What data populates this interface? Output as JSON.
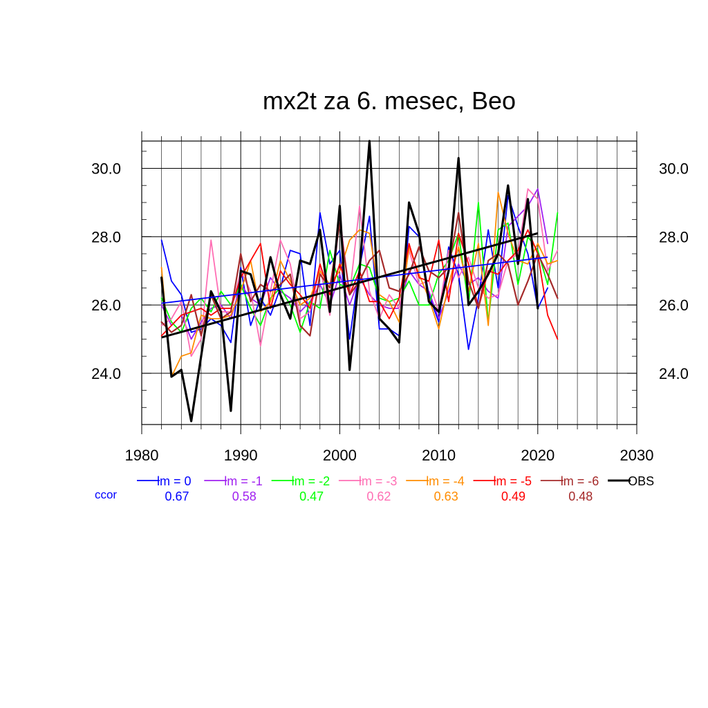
{
  "chart_data": {
    "type": "line",
    "title": "mx2t za 6. mesec, Beo",
    "xlim": [
      1980,
      2030
    ],
    "ylim": [
      22.5,
      30.8
    ],
    "x_ticks": [
      1980,
      1990,
      2000,
      2010,
      2020,
      2030
    ],
    "x_tick_labels": [
      "1980",
      "1990",
      "2000",
      "2010",
      "2020",
      "2030"
    ],
    "y_ticks": [
      24,
      26,
      28,
      30
    ],
    "y_tick_labels": [
      "24.0",
      "26.0",
      "28.0",
      "30.0"
    ],
    "grid": true,
    "ccor_label": "ccor",
    "series": [
      {
        "name": "lm = 0",
        "color": "#0000ff",
        "width": 1.8,
        "ccor": "0.67",
        "x": [
          1982,
          1983,
          1984,
          1985,
          1986,
          1987,
          1988,
          1989,
          1990,
          1991,
          1992,
          1993,
          1994,
          1995,
          1996,
          1997,
          1998,
          1999,
          2000,
          2001,
          2002,
          2003,
          2004,
          2005,
          2006,
          2007,
          2008,
          2009,
          2010,
          2011,
          2012,
          2013,
          2014,
          2015,
          2016,
          2017,
          2018,
          2019,
          2020,
          2021
        ],
        "y": [
          27.9,
          26.7,
          26.3,
          25.2,
          25.3,
          25.6,
          25.4,
          24.9,
          27.1,
          25.4,
          26.2,
          25.7,
          26.5,
          27.6,
          27.5,
          25.4,
          28.7,
          27.2,
          27.6,
          25.0,
          27.1,
          28.6,
          25.3,
          25.3,
          25.1,
          28.3,
          28.0,
          26.3,
          25.5,
          27.7,
          26.9,
          24.7,
          26.2,
          28.2,
          26.5,
          29.2,
          28.3,
          27.5,
          25.9,
          26.5
        ],
        "trend": [
          [
            1982,
            26.05
          ],
          [
            2021,
            27.4
          ]
        ]
      },
      {
        "name": "lm = -1",
        "color": "#a020f0",
        "width": 1.8,
        "ccor": "0.58",
        "x": [
          1982,
          1983,
          1984,
          1985,
          1986,
          1987,
          1988,
          1989,
          1990,
          1991,
          1992,
          1993,
          1994,
          1995,
          1996,
          1997,
          1998,
          1999,
          2000,
          2001,
          2002,
          2003,
          2004,
          2005,
          2006,
          2007,
          2008,
          2009,
          2010,
          2011,
          2012,
          2013,
          2014,
          2015,
          2016,
          2017,
          2018,
          2019,
          2020,
          2021
        ],
        "y": [
          26.0,
          25.4,
          25.7,
          25.0,
          25.5,
          25.9,
          26.0,
          25.6,
          26.6,
          26.2,
          26.0,
          26.8,
          26.4,
          26.2,
          25.8,
          26.1,
          26.6,
          26.0,
          26.9,
          26.0,
          26.8,
          26.3,
          26.0,
          25.9,
          25.9,
          27.0,
          26.6,
          26.4,
          25.6,
          26.4,
          27.2,
          26.6,
          26.8,
          26.4,
          26.2,
          28.3,
          28.6,
          28.9,
          29.4,
          27.8
        ]
      },
      {
        "name": "lm = -2",
        "color": "#00ff00",
        "width": 1.8,
        "ccor": "0.47",
        "x": [
          1982,
          1983,
          1984,
          1985,
          1986,
          1987,
          1988,
          1989,
          1990,
          1991,
          1992,
          1993,
          1994,
          1995,
          1996,
          1997,
          1998,
          1999,
          2000,
          2001,
          2002,
          2003,
          2004,
          2005,
          2006,
          2007,
          2008,
          2009,
          2010,
          2011,
          2012,
          2013,
          2014,
          2015,
          2016,
          2017,
          2018,
          2019,
          2020,
          2021,
          2022
        ],
        "y": [
          26.2,
          25.5,
          25.2,
          25.9,
          26.2,
          25.8,
          26.4,
          26.0,
          26.6,
          25.9,
          25.4,
          26.2,
          26.5,
          26.0,
          25.2,
          26.1,
          25.9,
          27.6,
          26.6,
          26.5,
          27.2,
          27.1,
          26.2,
          26.1,
          26.2,
          26.7,
          26.0,
          26.0,
          26.9,
          27.3,
          28.1,
          26.0,
          29.0,
          25.5,
          28.2,
          28.4,
          26.6,
          28.0,
          27.6,
          26.6,
          28.7
        ]
      },
      {
        "name": "lm = -3",
        "color": "#ff6eb4",
        "width": 1.8,
        "ccor": "0.62",
        "x": [
          1982,
          1983,
          1984,
          1985,
          1986,
          1987,
          1988,
          1989,
          1990,
          1991,
          1992,
          1993,
          1994,
          1995,
          1996,
          1997,
          1998,
          1999,
          2000,
          2001,
          2002,
          2003,
          2004,
          2005,
          2006,
          2007,
          2008,
          2009,
          2010,
          2011,
          2012,
          2013,
          2014,
          2015,
          2016,
          2017,
          2018,
          2019,
          2020,
          2021,
          2022
        ],
        "y": [
          25.4,
          25.6,
          26.1,
          24.5,
          25.0,
          27.9,
          25.8,
          25.8,
          27.0,
          26.4,
          24.8,
          26.4,
          27.9,
          27.2,
          25.6,
          25.8,
          27.1,
          25.7,
          28.6,
          26.3,
          28.9,
          26.4,
          25.6,
          26.3,
          25.9,
          27.6,
          26.6,
          26.7,
          25.8,
          27.6,
          26.8,
          27.4,
          26.5,
          26.2,
          26.3,
          27.3,
          27.5,
          29.4,
          29.1,
          27.0,
          27.6
        ]
      },
      {
        "name": "lm = -4",
        "color": "#ff8c00",
        "width": 1.8,
        "ccor": "0.63",
        "x": [
          1982,
          1983,
          1984,
          1985,
          1986,
          1987,
          1988,
          1989,
          1990,
          1991,
          1992,
          1993,
          1994,
          1995,
          1996,
          1997,
          1998,
          1999,
          2000,
          2001,
          2002,
          2003,
          2004,
          2005,
          2006,
          2007,
          2008,
          2009,
          2010,
          2011,
          2012,
          2013,
          2014,
          2015,
          2016,
          2017,
          2018,
          2019,
          2020,
          2021,
          2022
        ],
        "y": [
          27.1,
          23.9,
          24.5,
          24.6,
          25.7,
          25.6,
          25.6,
          25.7,
          26.4,
          27.3,
          25.8,
          26.1,
          27.3,
          26.7,
          26.0,
          26.2,
          27.0,
          26.6,
          27.0,
          27.9,
          28.2,
          28.1,
          26.3,
          26.1,
          25.5,
          27.7,
          26.9,
          26.2,
          25.3,
          26.6,
          27.7,
          26.4,
          27.8,
          25.4,
          29.3,
          28.1,
          27.3,
          27.2,
          27.8,
          27.2,
          27.3
        ]
      },
      {
        "name": "lm = -5",
        "color": "#ff0000",
        "width": 1.8,
        "ccor": "0.49",
        "x": [
          1982,
          1983,
          1984,
          1985,
          1986,
          1987,
          1988,
          1989,
          1990,
          1991,
          1992,
          1993,
          1994,
          1995,
          1996,
          1997,
          1998,
          1999,
          2000,
          2001,
          2002,
          2003,
          2004,
          2005,
          2006,
          2007,
          2008,
          2009,
          2010,
          2011,
          2012,
          2013,
          2014,
          2015,
          2016,
          2017,
          2018,
          2019,
          2020,
          2021,
          2022
        ],
        "y": [
          25.1,
          25.4,
          25.7,
          25.8,
          25.9,
          25.7,
          25.9,
          25.9,
          26.8,
          27.3,
          27.8,
          25.9,
          27.0,
          26.6,
          26.3,
          25.9,
          27.2,
          26.3,
          27.2,
          26.3,
          27.0,
          26.1,
          26.1,
          25.6,
          26.2,
          27.8,
          26.8,
          26.7,
          27.9,
          26.1,
          28.1,
          27.2,
          25.9,
          27.0,
          26.9,
          27.3,
          27.6,
          28.2,
          27.5,
          25.7,
          25.0
        ]
      },
      {
        "name": "lm = -6",
        "color": "#a52a2a",
        "width": 2.2,
        "ccor": "0.48",
        "x": [
          1982,
          1983,
          1984,
          1985,
          1986,
          1987,
          1988,
          1989,
          1990,
          1991,
          1992,
          1993,
          1994,
          1995,
          1996,
          1997,
          1998,
          1999,
          2000,
          2001,
          2002,
          2003,
          2004,
          2005,
          2006,
          2007,
          2008,
          2009,
          2010,
          2011,
          2012,
          2013,
          2014,
          2015,
          2016,
          2017,
          2018,
          2019,
          2020,
          2021,
          2022
        ],
        "y": [
          25.5,
          25.2,
          25.4,
          26.3,
          25.1,
          26.3,
          25.6,
          25.8,
          27.5,
          26.1,
          26.6,
          26.4,
          26.6,
          26.9,
          25.4,
          25.1,
          26.9,
          26.5,
          28.4,
          26.3,
          26.7,
          27.3,
          27.6,
          26.5,
          26.4,
          26.9,
          27.7,
          27.0,
          26.8,
          27.1,
          28.7,
          26.7,
          25.9,
          27.3,
          27.5,
          27.2,
          26.0,
          26.7,
          27.5,
          26.9,
          26.2
        ]
      },
      {
        "name": "OBS",
        "color": "#000000",
        "width": 3.2,
        "ccor": "",
        "x": [
          1982,
          1983,
          1984,
          1985,
          1986,
          1987,
          1988,
          1989,
          1990,
          1991,
          1992,
          1993,
          1994,
          1995,
          1996,
          1997,
          1998,
          1999,
          2000,
          2001,
          2002,
          2003,
          2004,
          2005,
          2006,
          2007,
          2008,
          2009,
          2010,
          2011,
          2012,
          2013,
          2014,
          2015,
          2016,
          2017,
          2018,
          2019,
          2020
        ],
        "y": [
          26.8,
          23.9,
          24.1,
          22.6,
          24.5,
          26.4,
          25.8,
          22.9,
          27.0,
          26.9,
          25.9,
          27.4,
          26.3,
          25.6,
          27.3,
          27.2,
          28.2,
          25.8,
          28.9,
          24.1,
          27.0,
          30.8,
          25.6,
          25.3,
          24.9,
          29.0,
          28.1,
          26.1,
          25.8,
          27.0,
          30.3,
          26.0,
          26.4,
          26.9,
          27.5,
          29.5,
          27.2,
          29.1,
          25.9
        ],
        "trend": [
          [
            1982,
            25.05
          ],
          [
            2020,
            28.1
          ]
        ]
      }
    ]
  }
}
